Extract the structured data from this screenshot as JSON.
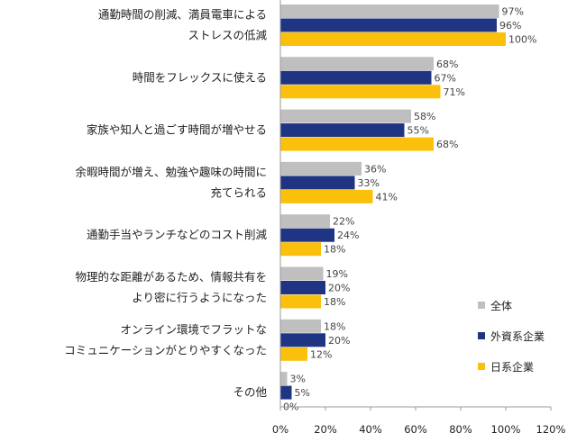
{
  "chart_data": {
    "type": "bar",
    "orientation": "horizontal",
    "categories": [
      [
        "通勤時間の削減、満員電車による",
        "ストレスの低減"
      ],
      [
        "時間をフレックスに使える"
      ],
      [
        "家族や知人と過ごす時間が増やせる"
      ],
      [
        "余暇時間が増え、勉強や趣味の時間に",
        "充てられる"
      ],
      [
        "通勤手当やランチなどのコスト削減"
      ],
      [
        "物理的な距離があるため、情報共有を",
        "より密に行うようになった"
      ],
      [
        "オンライン環境でフラットな",
        "コミュニケーションがとりやすくなった"
      ],
      [
        "その他"
      ]
    ],
    "series": [
      {
        "name": "全体",
        "color": "#bfbfbf",
        "values": [
          97,
          68,
          58,
          36,
          22,
          19,
          18,
          3
        ]
      },
      {
        "name": "外資系企業",
        "color": "#1f3483",
        "values": [
          96,
          67,
          55,
          33,
          24,
          20,
          20,
          5
        ]
      },
      {
        "name": "日系企業",
        "color": "#fbc00b",
        "values": [
          100,
          71,
          68,
          41,
          18,
          18,
          12,
          0
        ]
      }
    ],
    "value_suffix": "%",
    "xlim": [
      0,
      120
    ],
    "xticks": [
      0,
      20,
      40,
      60,
      80,
      100,
      120
    ],
    "grid": false,
    "legend_position": "right"
  }
}
